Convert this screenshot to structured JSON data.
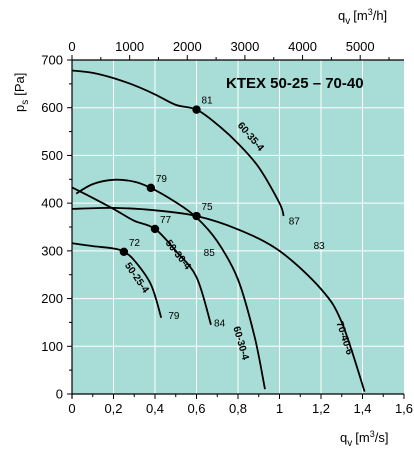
{
  "chart_data": {
    "type": "line",
    "title": "KTEX 50-25 – 70-40",
    "colors": {
      "plot_bg": "#a8dcd6",
      "grid": "#ffffff",
      "curve": "#000000"
    },
    "x_axis": {
      "label_main": "q",
      "label_sub": "v",
      "label_unit_open": "[m",
      "label_unit_sup": "3",
      "label_unit_close": "/s]",
      "range": [
        0,
        1.6
      ],
      "ticks": [
        0,
        0.2,
        0.4,
        0.6,
        0.8,
        1.0,
        1.2,
        1.4,
        1.6
      ],
      "tick_labels": [
        "0",
        "0,2",
        "0,4",
        "0,6",
        "0,8",
        "1",
        "1,2",
        "1,4",
        "1,6"
      ]
    },
    "x_axis_top": {
      "label_main": "q",
      "label_sub": "v",
      "label_unit_open": "[m",
      "label_unit_sup": "3",
      "label_unit_close": "/h]",
      "range": [
        0,
        5760
      ],
      "ticks": [
        0,
        1000,
        2000,
        3000,
        4000,
        5000
      ],
      "tick_labels": [
        "0",
        "1000",
        "2000",
        "3000",
        "4000",
        "5000"
      ]
    },
    "y_axis": {
      "label_main": "p",
      "label_sub": "s",
      "label_unit": "[Pa]",
      "range": [
        0,
        700
      ],
      "ticks": [
        0,
        100,
        200,
        300,
        400,
        500,
        600,
        700
      ],
      "tick_labels": [
        "0",
        "100",
        "200",
        "300",
        "400",
        "500",
        "600",
        "700"
      ]
    },
    "grid": true,
    "series": [
      {
        "name": "60-35-4",
        "label_at": [
          0.85,
          535
        ],
        "points": [
          [
            0,
            678
          ],
          [
            0.1,
            673
          ],
          [
            0.2,
            662
          ],
          [
            0.3,
            647
          ],
          [
            0.4,
            628
          ],
          [
            0.5,
            606
          ],
          [
            0.6,
            596
          ],
          [
            0.7,
            565
          ],
          [
            0.8,
            525
          ],
          [
            0.9,
            475
          ],
          [
            1.0,
            400
          ],
          [
            1.02,
            373
          ]
        ]
      },
      {
        "name": "50-30-4",
        "label_at": [
          0.5,
          288
        ],
        "points": [
          [
            0,
            433
          ],
          [
            0.1,
            411
          ],
          [
            0.2,
            388
          ],
          [
            0.3,
            363
          ],
          [
            0.4,
            346
          ],
          [
            0.5,
            300
          ],
          [
            0.6,
            245
          ],
          [
            0.67,
            145
          ]
        ]
      },
      {
        "name": "60-30-4",
        "label_at": [
          0.8,
          105
        ],
        "points": [
          [
            0.02,
            420
          ],
          [
            0.1,
            440
          ],
          [
            0.2,
            449
          ],
          [
            0.3,
            445
          ],
          [
            0.38,
            432
          ],
          [
            0.5,
            402
          ],
          [
            0.6,
            370
          ],
          [
            0.7,
            320
          ],
          [
            0.8,
            240
          ],
          [
            0.88,
            120
          ],
          [
            0.93,
            10
          ]
        ]
      },
      {
        "name": "70-40-6",
        "label_at": [
          1.3,
          115
        ],
        "points": [
          [
            0,
            388
          ],
          [
            0.2,
            390
          ],
          [
            0.4,
            385
          ],
          [
            0.6,
            373
          ],
          [
            0.8,
            345
          ],
          [
            1.0,
            300
          ],
          [
            1.2,
            220
          ],
          [
            1.3,
            150
          ],
          [
            1.41,
            5
          ]
        ]
      },
      {
        "name": "50-25-4",
        "label_at": [
          0.3,
          240
        ],
        "points": [
          [
            0,
            316
          ],
          [
            0.1,
            310
          ],
          [
            0.2,
            305
          ],
          [
            0.25,
            298
          ],
          [
            0.3,
            280
          ],
          [
            0.38,
            230
          ],
          [
            0.43,
            160
          ]
        ]
      }
    ],
    "operating_points": [
      {
        "x": 0.6,
        "y": 596,
        "label": "81"
      },
      {
        "x": 0.38,
        "y": 432,
        "label": "79"
      },
      {
        "x": 0.6,
        "y": 373,
        "label": "75"
      },
      {
        "x": 0.4,
        "y": 346,
        "label": "77"
      },
      {
        "x": 0.25,
        "y": 298,
        "label": "72"
      }
    ],
    "end_labels": [
      {
        "x": 1.03,
        "y": 362,
        "label": "87"
      },
      {
        "x": 0.62,
        "y": 295,
        "label": "85"
      },
      {
        "x": 1.15,
        "y": 310,
        "label": "83"
      },
      {
        "x": 0.67,
        "y": 148,
        "label": "84"
      },
      {
        "x": 0.45,
        "y": 163,
        "label": "79"
      }
    ]
  }
}
